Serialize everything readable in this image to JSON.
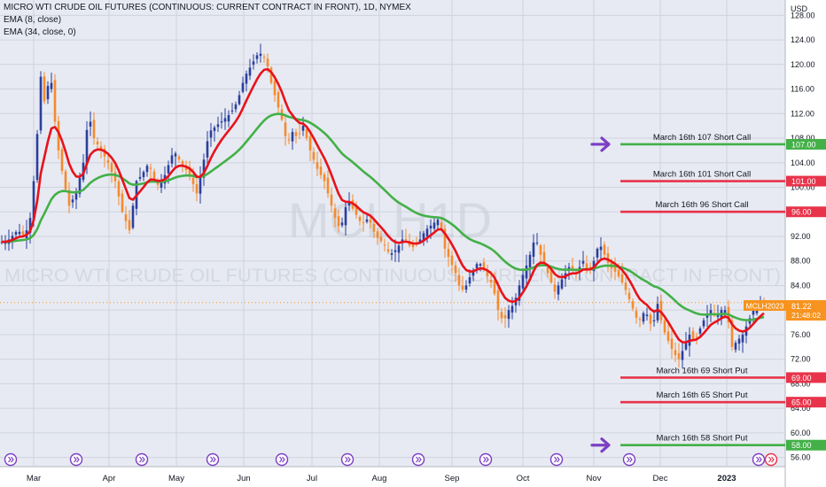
{
  "header": {
    "title": "MICRO WTI CRUDE OIL FUTURES (CONTINUOUS: CURRENT CONTRACT IN FRONT), 1D, NYMEX",
    "indicator_1": "EMA (8, close)",
    "indicator_2": "EMA (34, close, 0)"
  },
  "watermark": {
    "symbol": "MCLH1D",
    "name": "MICRO WTI CRUDE OIL FUTURES (CONTINUOUS: CURRENT CONTRACT IN FRONT)"
  },
  "colors": {
    "up_candle": "#2a3f9e",
    "down_candle": "#f58a2e",
    "ema_fast": "#e8121b",
    "ema_slow": "#43b048",
    "call_line": "#43b048",
    "put_line": "#e8334a",
    "arrow": "#7b3fc4",
    "price_badge": "#f7931e",
    "grid": "#cfd3dc",
    "plot_bg": "#e7eaf2"
  },
  "price_badge": {
    "symbol": "MCLH2023",
    "price": "81.22",
    "countdown": "21:48:02",
    "value": 81.22
  },
  "chart_data": {
    "type": "candlestick",
    "currency_label": "USD",
    "y_ticks": [
      "128.00",
      "124.00",
      "120.00",
      "116.00",
      "112.00",
      "108.00",
      "104.00",
      "100.00",
      "96.00",
      "92.00",
      "88.00",
      "84.00",
      "80.00",
      "76.00",
      "72.00",
      "68.00",
      "64.00",
      "60.00",
      "56.00"
    ],
    "ylim": [
      54.5,
      130.5
    ],
    "x_ticks": [
      "Mar",
      "Apr",
      "May",
      "Jun",
      "Jul",
      "Aug",
      "Sep",
      "Oct",
      "Nov",
      "Dec",
      "2023"
    ],
    "levels": [
      {
        "label": "March 16th 107 Short Call",
        "value": 107.0,
        "tag": "107.00",
        "kind": "call",
        "arrow": true
      },
      {
        "label": "March 16th 101 Short Call",
        "value": 101.0,
        "tag": "101.00",
        "kind": "put",
        "arrow": false
      },
      {
        "label": "March 16th 96 Short Call",
        "value": 96.0,
        "tag": "96.00",
        "kind": "put",
        "arrow": false
      },
      {
        "label": "March 16th 69 Short Put",
        "value": 69.0,
        "tag": "69.00",
        "kind": "put",
        "arrow": false
      },
      {
        "label": "March 16th 65 Short Put",
        "value": 65.0,
        "tag": "65.00",
        "kind": "put",
        "arrow": false
      },
      {
        "label": "March 16th 58 Short Put",
        "value": 58.0,
        "tag": "58.00",
        "kind": "call",
        "arrow": true
      }
    ],
    "close_path": [
      {
        "t": 0,
        "v": 91
      },
      {
        "t": 10,
        "v": 91.5
      },
      {
        "t": 20,
        "v": 93
      },
      {
        "t": 28,
        "v": 92
      },
      {
        "t": 34,
        "v": 95
      },
      {
        "t": 40,
        "v": 104
      },
      {
        "t": 46,
        "v": 118
      },
      {
        "t": 52,
        "v": 112
      },
      {
        "t": 56,
        "v": 121
      },
      {
        "t": 60,
        "v": 113
      },
      {
        "t": 66,
        "v": 106
      },
      {
        "t": 72,
        "v": 101
      },
      {
        "t": 78,
        "v": 97
      },
      {
        "t": 86,
        "v": 99
      },
      {
        "t": 94,
        "v": 104
      },
      {
        "t": 100,
        "v": 112
      },
      {
        "t": 106,
        "v": 108
      },
      {
        "t": 114,
        "v": 106
      },
      {
        "t": 122,
        "v": 104
      },
      {
        "t": 130,
        "v": 101
      },
      {
        "t": 138,
        "v": 96
      },
      {
        "t": 146,
        "v": 93
      },
      {
        "t": 154,
        "v": 101
      },
      {
        "t": 160,
        "v": 102
      },
      {
        "t": 168,
        "v": 104
      },
      {
        "t": 176,
        "v": 100
      },
      {
        "t": 186,
        "v": 102
      },
      {
        "t": 196,
        "v": 106
      },
      {
        "t": 204,
        "v": 104
      },
      {
        "t": 214,
        "v": 102
      },
      {
        "t": 222,
        "v": 99
      },
      {
        "t": 228,
        "v": 103
      },
      {
        "t": 236,
        "v": 109
      },
      {
        "t": 244,
        "v": 110
      },
      {
        "t": 252,
        "v": 111
      },
      {
        "t": 260,
        "v": 112
      },
      {
        "t": 268,
        "v": 114
      },
      {
        "t": 276,
        "v": 118
      },
      {
        "t": 284,
        "v": 120
      },
      {
        "t": 292,
        "v": 122
      },
      {
        "t": 300,
        "v": 121
      },
      {
        "t": 306,
        "v": 117
      },
      {
        "t": 312,
        "v": 114
      },
      {
        "t": 318,
        "v": 111
      },
      {
        "t": 324,
        "v": 107
      },
      {
        "t": 330,
        "v": 109
      },
      {
        "t": 336,
        "v": 108
      },
      {
        "t": 342,
        "v": 110
      },
      {
        "t": 350,
        "v": 106
      },
      {
        "t": 358,
        "v": 103
      },
      {
        "t": 366,
        "v": 101
      },
      {
        "t": 372,
        "v": 98
      },
      {
        "t": 378,
        "v": 95
      },
      {
        "t": 384,
        "v": 93
      },
      {
        "t": 392,
        "v": 98
      },
      {
        "t": 400,
        "v": 96
      },
      {
        "t": 408,
        "v": 94
      },
      {
        "t": 416,
        "v": 95
      },
      {
        "t": 424,
        "v": 92
      },
      {
        "t": 432,
        "v": 91
      },
      {
        "t": 440,
        "v": 89
      },
      {
        "t": 448,
        "v": 90
      },
      {
        "t": 456,
        "v": 92
      },
      {
        "t": 464,
        "v": 90
      },
      {
        "t": 472,
        "v": 91
      },
      {
        "t": 480,
        "v": 93
      },
      {
        "t": 488,
        "v": 94
      },
      {
        "t": 496,
        "v": 95
      },
      {
        "t": 502,
        "v": 90
      },
      {
        "t": 508,
        "v": 88
      },
      {
        "t": 514,
        "v": 86
      },
      {
        "t": 520,
        "v": 83
      },
      {
        "t": 526,
        "v": 84
      },
      {
        "t": 532,
        "v": 86
      },
      {
        "t": 540,
        "v": 88
      },
      {
        "t": 548,
        "v": 86
      },
      {
        "t": 556,
        "v": 84
      },
      {
        "t": 562,
        "v": 80
      },
      {
        "t": 568,
        "v": 78
      },
      {
        "t": 574,
        "v": 80
      },
      {
        "t": 580,
        "v": 81
      },
      {
        "t": 588,
        "v": 85
      },
      {
        "t": 596,
        "v": 88
      },
      {
        "t": 604,
        "v": 92
      },
      {
        "t": 610,
        "v": 89
      },
      {
        "t": 618,
        "v": 86
      },
      {
        "t": 626,
        "v": 83
      },
      {
        "t": 634,
        "v": 85
      },
      {
        "t": 642,
        "v": 87
      },
      {
        "t": 650,
        "v": 86
      },
      {
        "t": 658,
        "v": 88
      },
      {
        "t": 664,
        "v": 86
      },
      {
        "t": 670,
        "v": 88
      },
      {
        "t": 676,
        "v": 91
      },
      {
        "t": 682,
        "v": 89
      },
      {
        "t": 688,
        "v": 87
      },
      {
        "t": 696,
        "v": 86
      },
      {
        "t": 704,
        "v": 84
      },
      {
        "t": 712,
        "v": 81
      },
      {
        "t": 720,
        "v": 78
      },
      {
        "t": 728,
        "v": 80
      },
      {
        "t": 736,
        "v": 77
      },
      {
        "t": 742,
        "v": 81
      },
      {
        "t": 748,
        "v": 77
      },
      {
        "t": 754,
        "v": 75
      },
      {
        "t": 760,
        "v": 73
      },
      {
        "t": 766,
        "v": 72
      },
      {
        "t": 772,
        "v": 74
      },
      {
        "t": 778,
        "v": 76
      },
      {
        "t": 784,
        "v": 75
      },
      {
        "t": 790,
        "v": 77
      },
      {
        "t": 796,
        "v": 79
      },
      {
        "t": 802,
        "v": 80
      },
      {
        "t": 808,
        "v": 79
      },
      {
        "t": 814,
        "v": 80
      },
      {
        "t": 820,
        "v": 80
      },
      {
        "t": 826,
        "v": 74
      },
      {
        "t": 832,
        "v": 75
      },
      {
        "t": 838,
        "v": 76
      },
      {
        "t": 844,
        "v": 78
      },
      {
        "t": 850,
        "v": 80
      },
      {
        "t": 856,
        "v": 81
      },
      {
        "t": 862,
        "v": 81.22
      }
    ]
  }
}
